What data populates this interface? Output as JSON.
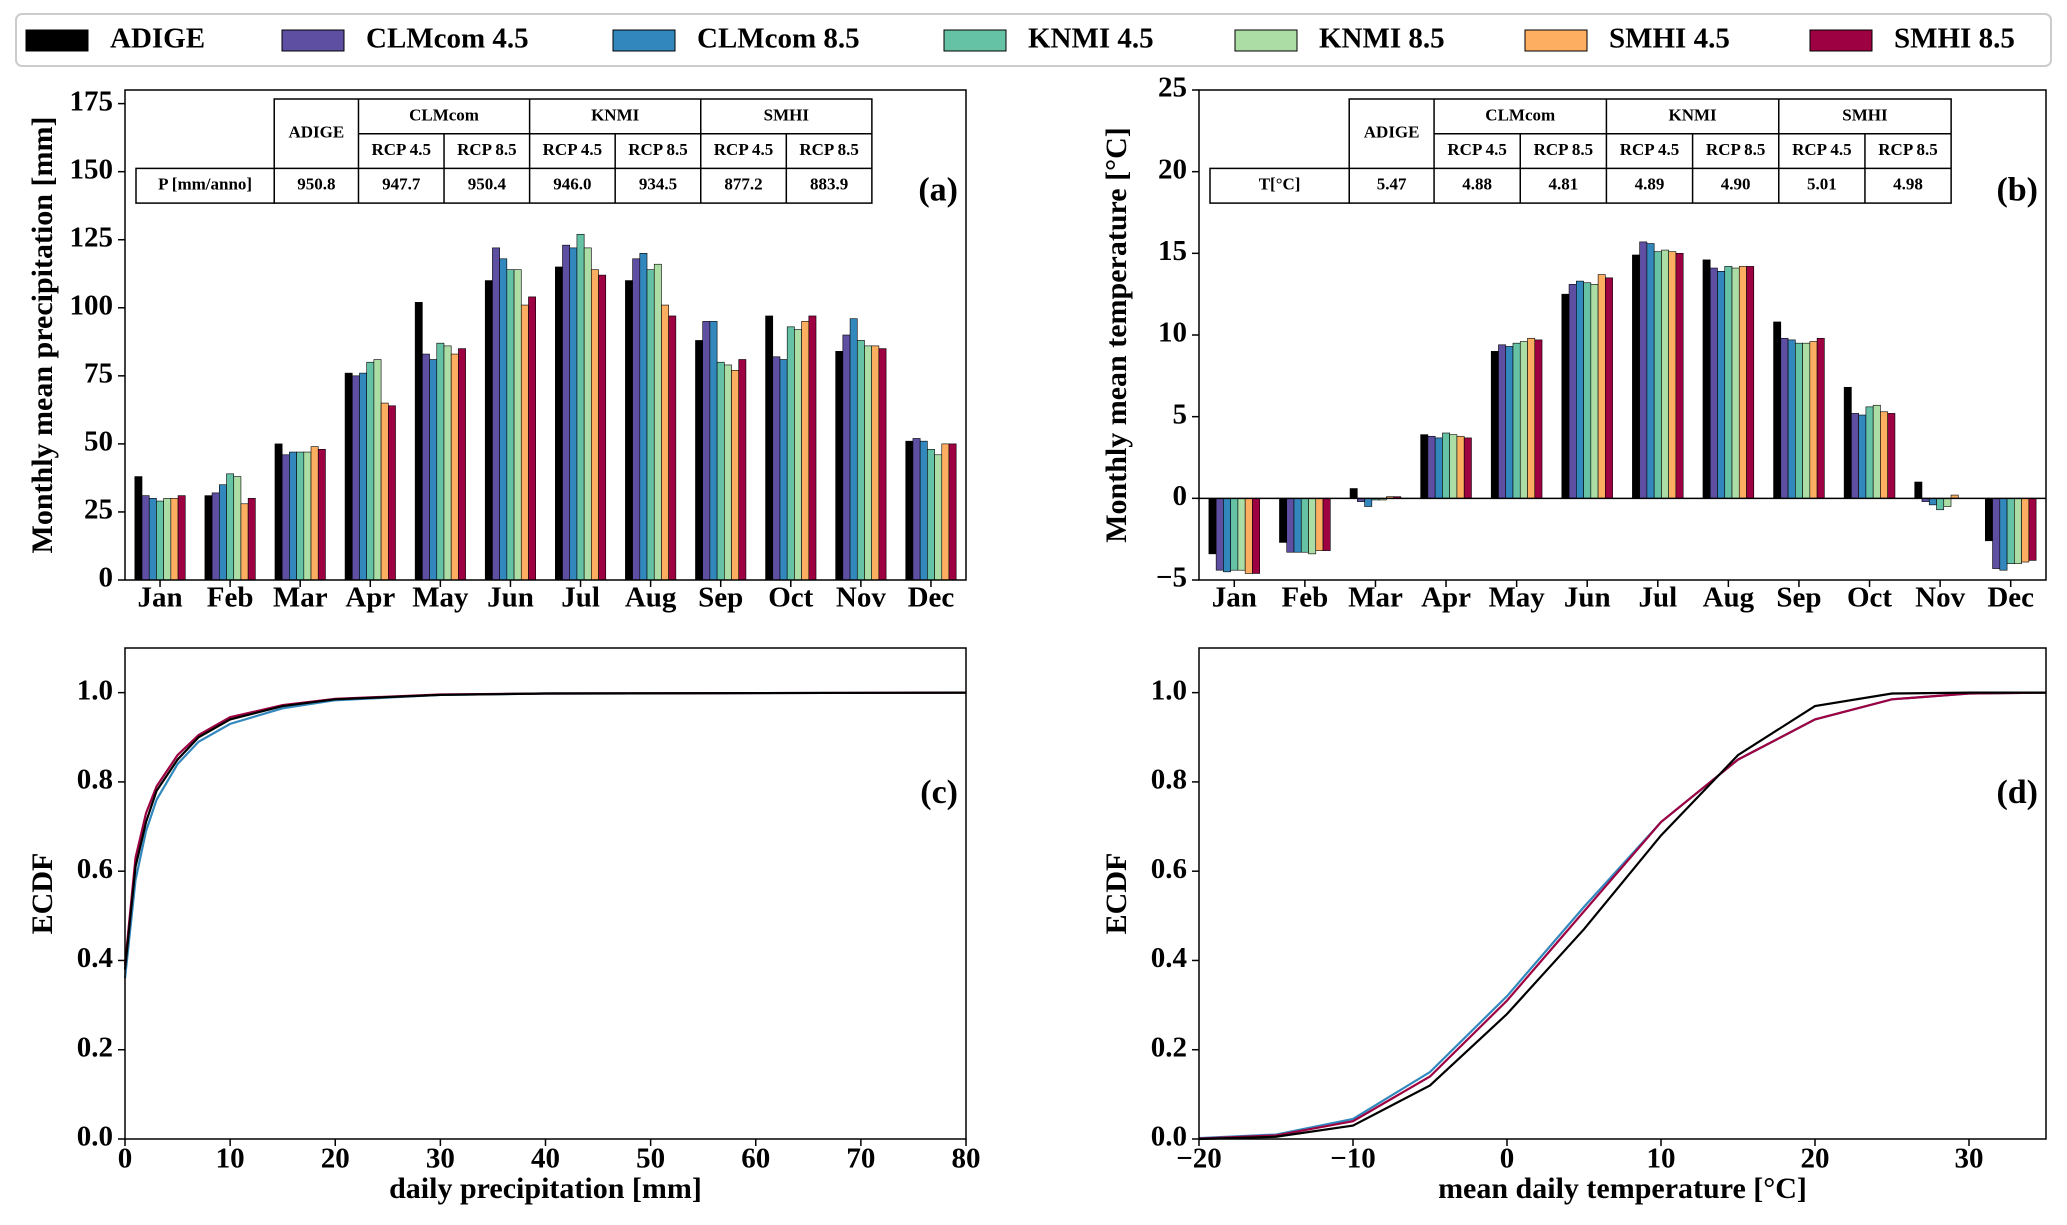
{
  "chart_data": [
    {
      "type": "bar",
      "panel_label": "(a)",
      "y_label": "Monthly mean precipitation [mm]",
      "legend": "top",
      "categories": [
        "Jan",
        "Feb",
        "Mar",
        "Apr",
        "May",
        "Jun",
        "Jul",
        "Aug",
        "Sep",
        "Oct",
        "Nov",
        "Dec"
      ],
      "series": [
        {
          "name": "ADIGE",
          "color": "#000000",
          "values": [
            38,
            31,
            50,
            76,
            102,
            110,
            115,
            110,
            88,
            97,
            84,
            51
          ]
        },
        {
          "name": "CLMcom 4.5",
          "color": "#5e4fa2",
          "values": [
            31,
            32,
            46,
            75,
            83,
            122,
            123,
            118,
            95,
            82,
            90,
            52
          ]
        },
        {
          "name": "CLMcom 8.5",
          "color": "#3288bd",
          "values": [
            30,
            35,
            47,
            76,
            81,
            118,
            122,
            120,
            95,
            81,
            96,
            51
          ]
        },
        {
          "name": "KNMI 4.5",
          "color": "#66c2a5",
          "values": [
            29,
            39,
            47,
            80,
            87,
            114,
            127,
            114,
            80,
            93,
            88,
            48
          ]
        },
        {
          "name": "KNMI 8.5",
          "color": "#abdda4",
          "values": [
            30,
            38,
            47,
            81,
            86,
            114,
            122,
            116,
            79,
            92,
            86,
            46
          ]
        },
        {
          "name": "SMHI 4.5",
          "color": "#fdae61",
          "values": [
            30,
            28,
            49,
            65,
            83,
            101,
            114,
            101,
            77,
            95,
            86,
            50
          ]
        },
        {
          "name": "SMHI 8.5",
          "color": "#9e0142",
          "values": [
            31,
            30,
            48,
            64,
            85,
            104,
            112,
            97,
            81,
            97,
            85,
            50
          ]
        }
      ],
      "ylim": [
        0,
        180
      ],
      "yticks": [
        0,
        25,
        50,
        75,
        100,
        125,
        150,
        175
      ],
      "zero_line": false,
      "table": {
        "header": "ADIGE",
        "groups": [
          "CLMcom",
          "KNMI",
          "SMHI"
        ],
        "subheaders": [
          "RCP 4.5",
          "RCP 8.5",
          "RCP 4.5",
          "RCP 8.5",
          "RCP 4.5",
          "RCP 8.5"
        ],
        "row_label": "P [mm/anno]",
        "row_values": [
          "950.8",
          "947.7",
          "950.4",
          "946.0",
          "934.5",
          "877.2",
          "883.9"
        ]
      }
    },
    {
      "type": "bar",
      "panel_label": "(b)",
      "y_label": "Monthly mean temperature [°C]",
      "categories": [
        "Jan",
        "Feb",
        "Mar",
        "Apr",
        "May",
        "Jun",
        "Jul",
        "Aug",
        "Sep",
        "Oct",
        "Nov",
        "Dec"
      ],
      "series": [
        {
          "name": "ADIGE",
          "color": "#000000",
          "values": [
            -3.4,
            -2.7,
            0.6,
            3.9,
            9.0,
            12.5,
            14.9,
            14.6,
            10.8,
            6.8,
            1.0,
            -2.6
          ]
        },
        {
          "name": "CLMcom 4.5",
          "color": "#5e4fa2",
          "values": [
            -4.4,
            -3.3,
            -0.2,
            3.8,
            9.4,
            13.1,
            15.7,
            14.1,
            9.8,
            5.2,
            -0.2,
            -4.3
          ]
        },
        {
          "name": "CLMcom 8.5",
          "color": "#3288bd",
          "values": [
            -4.5,
            -3.3,
            -0.5,
            3.7,
            9.3,
            13.3,
            15.6,
            13.9,
            9.7,
            5.1,
            -0.4,
            -4.4
          ]
        },
        {
          "name": "KNMI 4.5",
          "color": "#66c2a5",
          "values": [
            -4.4,
            -3.3,
            -0.1,
            4.0,
            9.5,
            13.2,
            15.1,
            14.2,
            9.5,
            5.6,
            -0.7,
            -4.0
          ]
        },
        {
          "name": "KNMI 8.5",
          "color": "#abdda4",
          "values": [
            -4.4,
            -3.4,
            -0.1,
            3.9,
            9.6,
            13.1,
            15.2,
            14.1,
            9.5,
            5.7,
            -0.5,
            -4.0
          ]
        },
        {
          "name": "SMHI 4.5",
          "color": "#fdae61",
          "values": [
            -4.6,
            -3.2,
            0.1,
            3.8,
            9.8,
            13.7,
            15.1,
            14.2,
            9.6,
            5.3,
            0.2,
            -3.9
          ]
        },
        {
          "name": "SMHI 8.5",
          "color": "#9e0142",
          "values": [
            -4.6,
            -3.2,
            0.1,
            3.7,
            9.7,
            13.5,
            15.0,
            14.2,
            9.8,
            5.2,
            0.0,
            -3.8
          ]
        }
      ],
      "ylim": [
        -5,
        25
      ],
      "yticks": [
        {
          "value": -5,
          "label": "−5"
        },
        0,
        5,
        10,
        15,
        20,
        25
      ],
      "zero_line": true,
      "table": {
        "header": "ADIGE",
        "groups": [
          "CLMcom",
          "KNMI",
          "SMHI"
        ],
        "subheaders": [
          "RCP 4.5",
          "RCP 8.5",
          "RCP 4.5",
          "RCP 8.5",
          "RCP 4.5",
          "RCP 8.5"
        ],
        "row_label": "T[°C]",
        "row_values": [
          "5.47",
          "4.88",
          "4.81",
          "4.89",
          "4.90",
          "5.01",
          "4.98"
        ]
      }
    },
    {
      "type": "line",
      "panel_label": "(c)",
      "y_label": "ECDF",
      "x_label": "daily precipitation [mm]",
      "x": [
        0,
        1,
        2,
        3,
        5,
        7,
        10,
        15,
        20,
        30,
        40,
        80
      ],
      "series": [
        {
          "name": "CLMcom 8.5",
          "color": "#3288bd",
          "values": [
            0.36,
            0.58,
            0.69,
            0.76,
            0.84,
            0.89,
            0.93,
            0.965,
            0.983,
            0.995,
            0.998,
            1.0
          ]
        },
        {
          "name": "SMHI 8.5",
          "color": "#9e0142",
          "values": [
            0.39,
            0.63,
            0.73,
            0.79,
            0.86,
            0.905,
            0.945,
            0.972,
            0.986,
            0.996,
            0.998,
            1.0
          ]
        },
        {
          "name": "ADIGE",
          "color": "#000000",
          "values": [
            0.38,
            0.61,
            0.71,
            0.78,
            0.85,
            0.9,
            0.94,
            0.97,
            0.985,
            0.995,
            0.998,
            1.0
          ]
        }
      ],
      "xlim": [
        0,
        80
      ],
      "xticks": [
        0,
        10,
        20,
        30,
        40,
        50,
        60,
        70,
        80
      ],
      "ylim": [
        0,
        1.1
      ],
      "yticks": [
        {
          "value": 0,
          "label": "0.0"
        },
        0.2,
        0.4,
        0.6,
        0.8,
        {
          "value": 1,
          "label": "1.0"
        }
      ]
    },
    {
      "type": "line",
      "panel_label": "(d)",
      "y_label": "ECDF",
      "x_label": "mean daily temperature [°C]",
      "x": [
        -20,
        -15,
        -10,
        -5,
        0,
        5,
        10,
        15,
        20,
        25,
        30,
        35
      ],
      "series": [
        {
          "name": "CLMcom 8.5",
          "color": "#3288bd",
          "values": [
            0.002,
            0.01,
            0.045,
            0.15,
            0.32,
            0.52,
            0.71,
            0.85,
            0.94,
            0.985,
            0.998,
            1.0
          ]
        },
        {
          "name": "SMHI 8.5",
          "color": "#9e0142",
          "values": [
            0.001,
            0.008,
            0.04,
            0.14,
            0.31,
            0.51,
            0.71,
            0.85,
            0.94,
            0.985,
            0.998,
            1.0
          ]
        },
        {
          "name": "ADIGE",
          "color": "#000000",
          "values": [
            0.0,
            0.005,
            0.03,
            0.12,
            0.28,
            0.47,
            0.68,
            0.86,
            0.97,
            0.998,
            1.0,
            1.0
          ]
        }
      ],
      "xlim": [
        -20,
        35
      ],
      "xticks": [
        {
          "value": -20,
          "label": "−20"
        },
        {
          "value": -10,
          "label": "−10"
        },
        0,
        10,
        20,
        30
      ],
      "ylim": [
        0,
        1.1
      ],
      "yticks": [
        {
          "value": 0,
          "label": "0.0"
        },
        0.2,
        0.4,
        0.6,
        0.8,
        {
          "value": 1,
          "label": "1.0"
        }
      ]
    }
  ]
}
